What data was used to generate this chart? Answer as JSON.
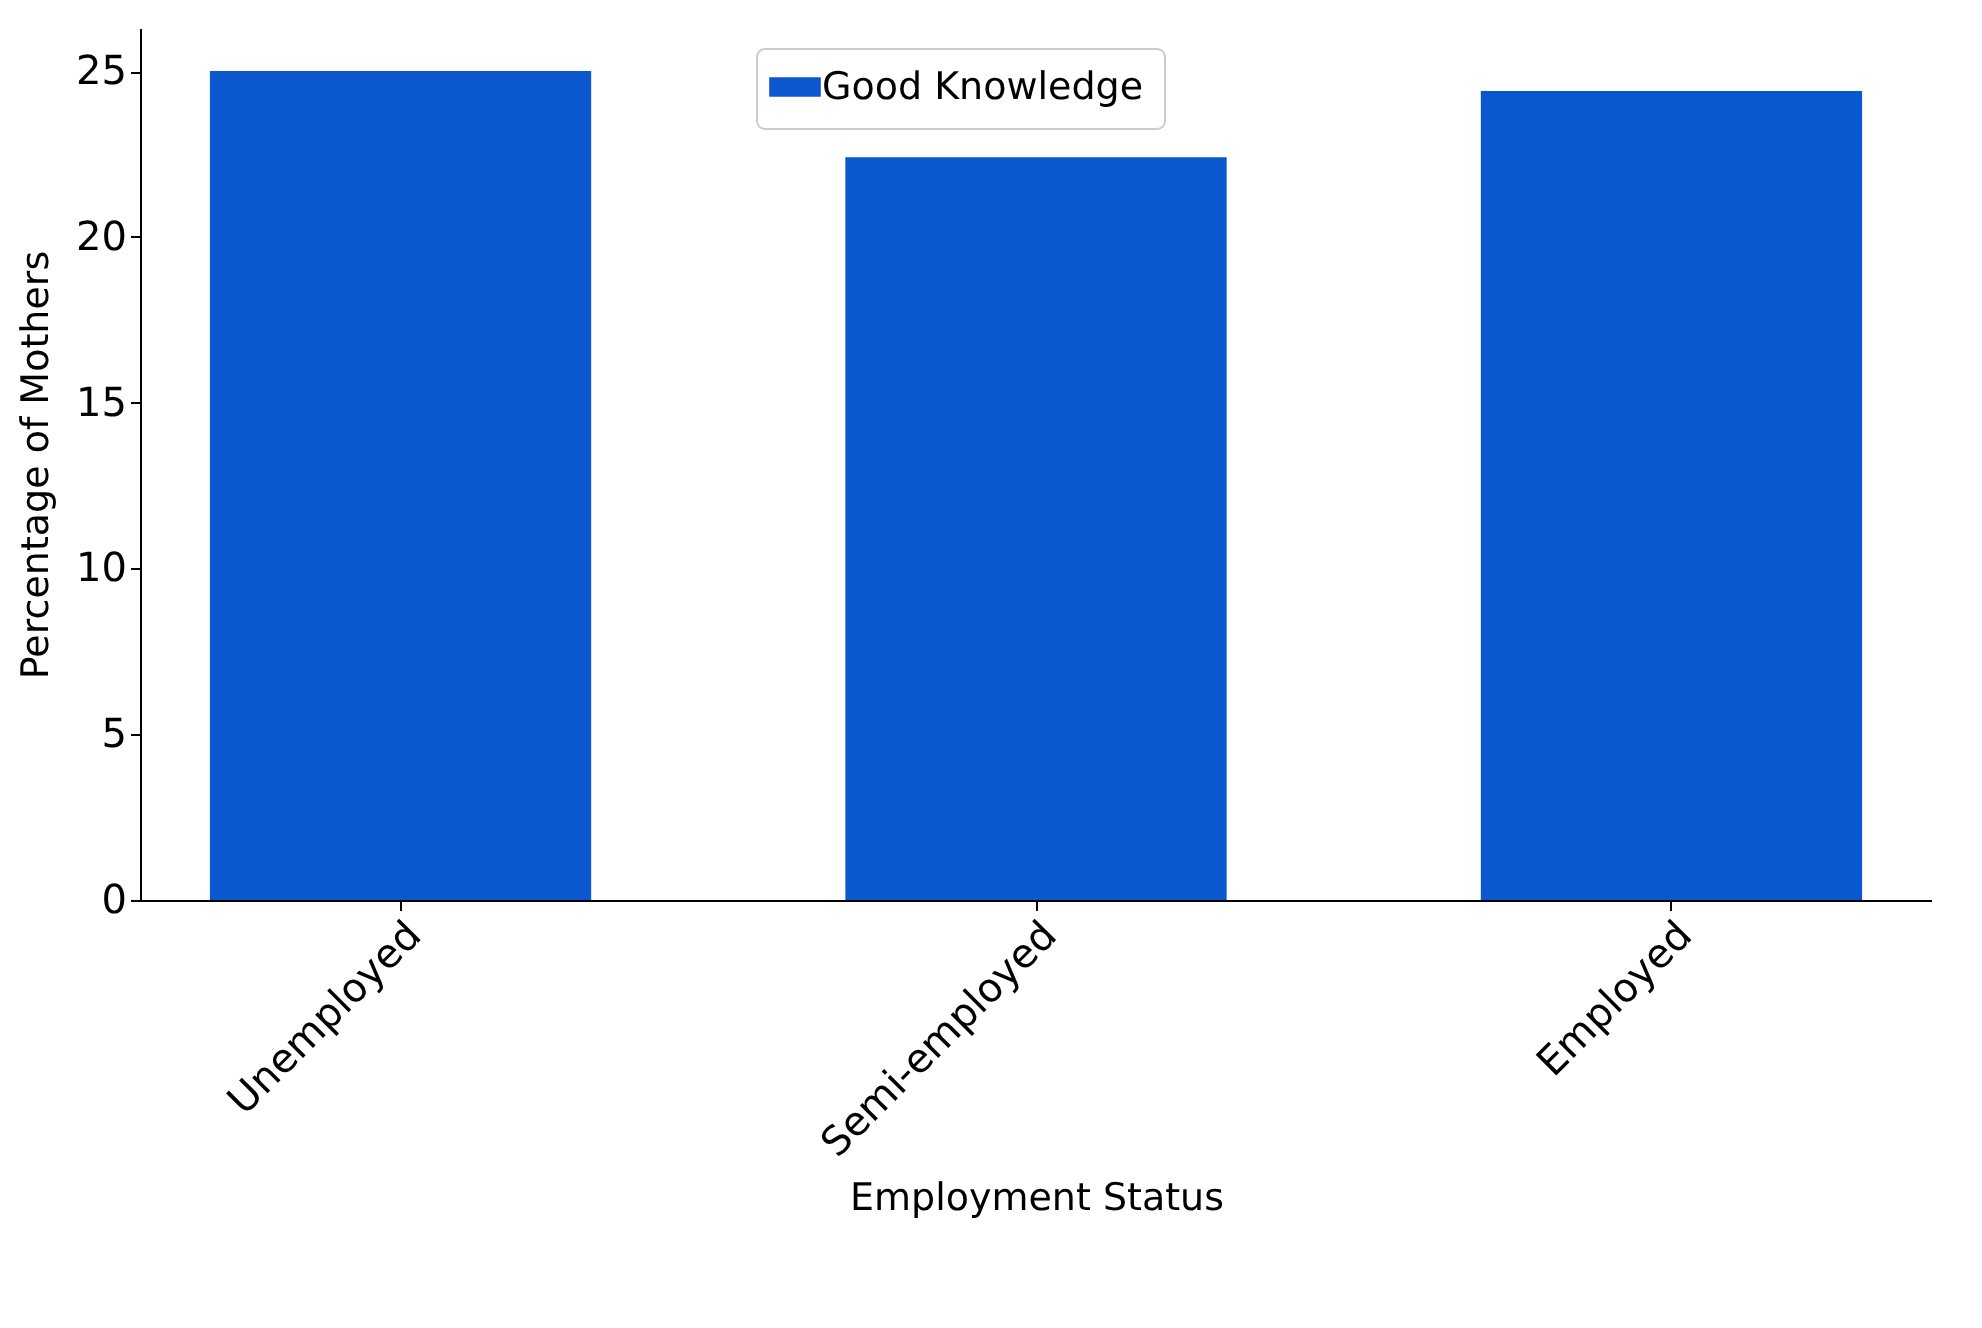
{
  "chart_data": {
    "type": "bar",
    "xlabel": "Employment Status",
    "ylabel": "Percentage of Mothers",
    "categories": [
      "Unemployed",
      "Semi-employed",
      "Employed"
    ],
    "series": [
      {
        "name": "Good Knowledge",
        "color": "#0b57d0",
        "values": [
          25.0,
          22.4,
          24.4
        ]
      }
    ],
    "ylim": [
      0,
      26.3
    ],
    "yticks": [
      0,
      5,
      10,
      15,
      20,
      25
    ],
    "legend": "top"
  }
}
